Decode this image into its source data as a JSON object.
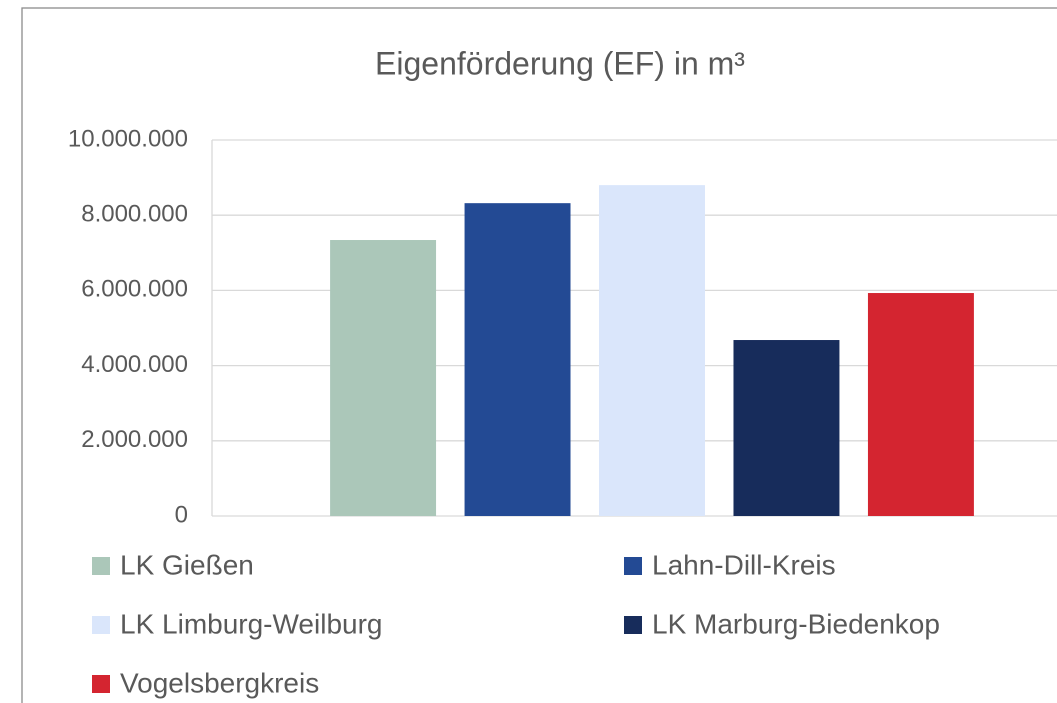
{
  "chart_data": {
    "type": "bar",
    "title": "Eigenförderung (EF) in m³",
    "categories": [
      null
    ],
    "series": [
      {
        "name": "LK Gießen",
        "color": "#abc7b9",
        "values": [
          7340000
        ]
      },
      {
        "name": "Lahn-Dill-Kreis",
        "color": "#234a94",
        "values": [
          8320000
        ]
      },
      {
        "name": "LK Limburg-Weilburg",
        "color": "#dae6fb",
        "values": [
          8800000
        ]
      },
      {
        "name": "LK Marburg-Biedenkop",
        "color": "#172c5b",
        "values": [
          4680000
        ]
      },
      {
        "name": "Vogelsbergkreis",
        "color": "#d42530",
        "values": [
          5930000
        ]
      }
    ],
    "ylim": [
      0,
      10000000
    ],
    "yticks": [
      0,
      {
        "value": 2000000,
        "label": "2.000.000"
      },
      {
        "value": 4000000,
        "label": "4.000.000"
      },
      {
        "value": 6000000,
        "label": "6.000.000"
      },
      {
        "value": 8000000,
        "label": "8.000.000"
      },
      {
        "value": 10000000,
        "label": "10.000.000"
      }
    ],
    "grid": true
  }
}
